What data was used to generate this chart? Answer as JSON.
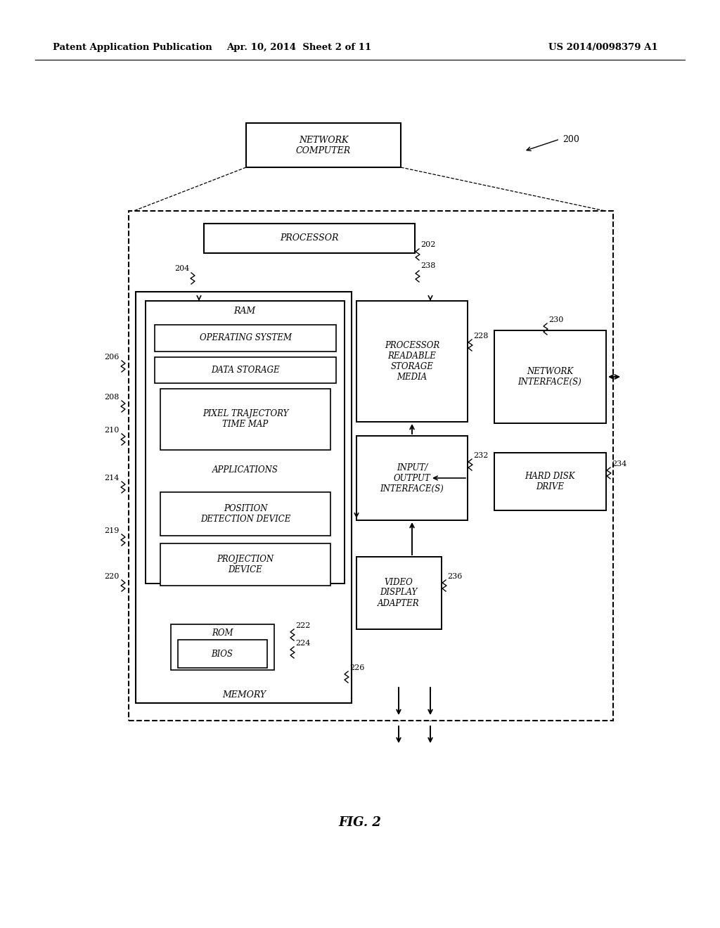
{
  "bg_color": "#ffffff",
  "header_left": "Patent Application Publication",
  "header_mid": "Apr. 10, 2014  Sheet 2 of 11",
  "header_right": "US 2014/0098379 A1",
  "fig_label": "FIG. 2"
}
